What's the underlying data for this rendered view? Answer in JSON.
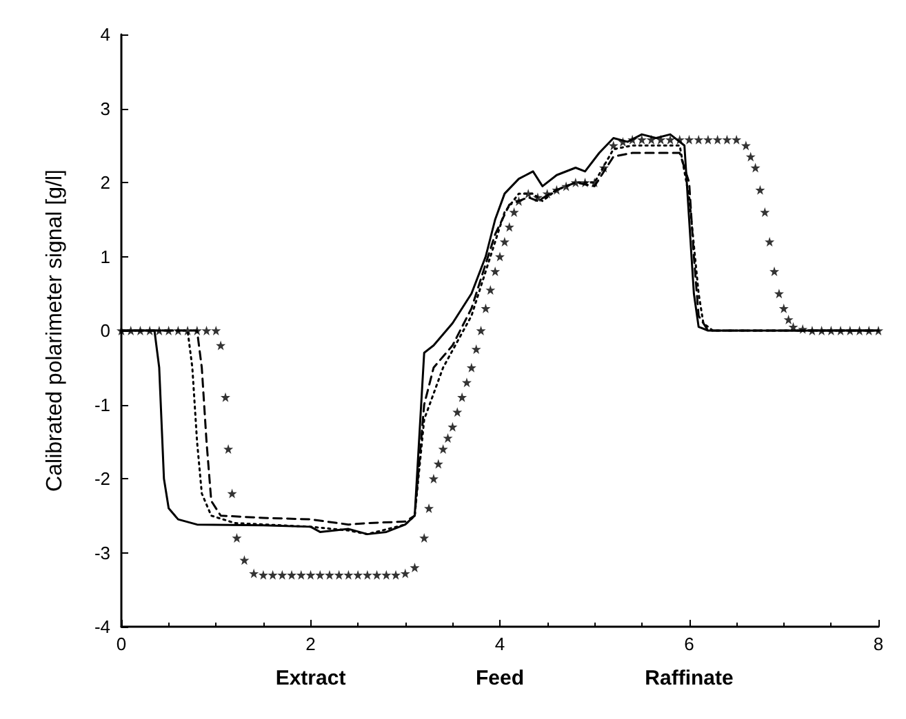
{
  "chart_data": {
    "type": "line",
    "ylabel": "Calibrated polarimeter signal [g/l]",
    "xlim": [
      0,
      8
    ],
    "xticks": [
      0,
      2,
      4,
      6,
      8
    ],
    "ylim": [
      -4,
      4
    ],
    "yticks": [
      -4,
      -3,
      -2,
      -1,
      0,
      1,
      2,
      3,
      4
    ],
    "grid": false,
    "annotations": [
      "Extract",
      "Feed",
      "Raffinate"
    ],
    "series": [
      {
        "color": "#000000",
        "line_style": "solid",
        "marker": "none",
        "x": [
          0,
          0.35,
          0.4,
          0.45,
          0.5,
          0.6,
          0.8,
          1.5,
          2,
          2.1,
          2.4,
          2.6,
          2.8,
          3.0,
          3.1,
          3.2,
          3.3,
          3.5,
          3.7,
          3.85,
          3.95,
          4.05,
          4.2,
          4.35,
          4.45,
          4.6,
          4.8,
          4.9,
          5.05,
          5.2,
          5.35,
          5.5,
          5.65,
          5.8,
          5.95,
          6.0,
          6.05,
          6.1,
          6.2,
          8
        ],
        "values": [
          0,
          0,
          -0.5,
          -2.0,
          -2.4,
          -2.55,
          -2.62,
          -2.63,
          -2.65,
          -2.72,
          -2.68,
          -2.75,
          -2.72,
          -2.62,
          -2.5,
          -0.3,
          -0.2,
          0.1,
          0.5,
          1.0,
          1.5,
          1.85,
          2.05,
          2.15,
          1.95,
          2.1,
          2.2,
          2.15,
          2.4,
          2.6,
          2.55,
          2.65,
          2.6,
          2.65,
          2.5,
          1.5,
          0.5,
          0.05,
          0,
          0
        ]
      },
      {
        "color": "#000000",
        "line_style": "dashed",
        "marker": "none",
        "x": [
          0,
          0.8,
          0.85,
          0.9,
          0.95,
          1.05,
          1.5,
          2,
          2.4,
          2.6,
          3.0,
          3.1,
          3.2,
          3.3,
          3.5,
          3.7,
          3.85,
          3.95,
          4.1,
          4.3,
          4.4,
          4.6,
          4.8,
          5.0,
          5.2,
          5.4,
          5.6,
          5.9,
          6.0,
          6.05,
          6.1,
          6.2,
          8
        ],
        "values": [
          0,
          0,
          -0.5,
          -1.5,
          -2.3,
          -2.5,
          -2.53,
          -2.55,
          -2.62,
          -2.6,
          -2.58,
          -2.5,
          -1.0,
          -0.5,
          -0.2,
          0.3,
          0.9,
          1.3,
          1.7,
          1.8,
          1.75,
          1.9,
          2.0,
          1.95,
          2.35,
          2.4,
          2.4,
          2.4,
          2.0,
          1.0,
          0.2,
          0,
          0
        ]
      },
      {
        "color": "#000000",
        "line_style": "dotted",
        "marker": "none",
        "x": [
          0,
          0.7,
          0.75,
          0.8,
          0.85,
          0.95,
          1.2,
          2,
          2.4,
          2.6,
          3,
          3.1,
          3.2,
          3.4,
          3.7,
          3.9,
          4.05,
          4.2,
          4.35,
          4.45,
          4.6,
          4.8,
          5.0,
          5.2,
          5.4,
          5.6,
          5.9,
          6.0,
          6.1,
          6.15,
          6.25,
          8
        ],
        "values": [
          0,
          0,
          -0.5,
          -1.5,
          -2.2,
          -2.5,
          -2.6,
          -2.65,
          -2.7,
          -2.75,
          -2.62,
          -2.5,
          -1.2,
          -0.5,
          0.2,
          1.0,
          1.6,
          1.85,
          1.85,
          1.75,
          1.9,
          2.0,
          2.0,
          2.45,
          2.5,
          2.5,
          2.5,
          1.8,
          0.5,
          0.1,
          0,
          0
        ]
      },
      {
        "type": "scatter",
        "color": "#000000",
        "marker": "star",
        "x": [
          0,
          0.1,
          0.2,
          0.3,
          0.4,
          0.5,
          0.6,
          0.7,
          0.8,
          0.9,
          1.0,
          1.05,
          1.1,
          1.13,
          1.17,
          1.22,
          1.3,
          1.4,
          1.5,
          1.6,
          1.7,
          1.8,
          1.9,
          2,
          2.1,
          2.2,
          2.3,
          2.4,
          2.5,
          2.6,
          2.7,
          2.8,
          2.9,
          3.0,
          3.1,
          3.2,
          3.25,
          3.3,
          3.35,
          3.4,
          3.45,
          3.5,
          3.55,
          3.6,
          3.65,
          3.7,
          3.75,
          3.8,
          3.85,
          3.9,
          3.95,
          4.0,
          4.05,
          4.1,
          4.15,
          4.2,
          4.3,
          4.4,
          4.5,
          4.6,
          4.7,
          4.8,
          4.9,
          5.0,
          5.1,
          5.2,
          5.3,
          5.4,
          5.5,
          5.6,
          5.7,
          5.8,
          5.9,
          6.0,
          6.1,
          6.2,
          6.3,
          6.4,
          6.5,
          6.6,
          6.65,
          6.7,
          6.75,
          6.8,
          6.85,
          6.9,
          6.95,
          7.0,
          7.05,
          7.1,
          7.2,
          7.3,
          7.4,
          7.5,
          7.6,
          7.7,
          7.8,
          7.9,
          8
        ],
        "values": [
          0,
          0,
          0,
          0,
          0,
          0,
          0,
          0,
          0,
          0,
          0,
          -0.2,
          -0.9,
          -1.6,
          -2.2,
          -2.8,
          -3.1,
          -3.28,
          -3.3,
          -3.3,
          -3.3,
          -3.3,
          -3.3,
          -3.3,
          -3.3,
          -3.3,
          -3.3,
          -3.3,
          -3.3,
          -3.3,
          -3.3,
          -3.3,
          -3.3,
          -3.28,
          -3.2,
          -2.8,
          -2.4,
          -2.0,
          -1.8,
          -1.6,
          -1.45,
          -1.3,
          -1.1,
          -0.9,
          -0.7,
          -0.5,
          -0.25,
          0,
          0.3,
          0.55,
          0.8,
          1.0,
          1.2,
          1.4,
          1.6,
          1.75,
          1.85,
          1.8,
          1.85,
          1.9,
          1.95,
          2.0,
          2.0,
          2.0,
          2.2,
          2.5,
          2.55,
          2.58,
          2.58,
          2.58,
          2.58,
          2.58,
          2.58,
          2.58,
          2.58,
          2.58,
          2.58,
          2.58,
          2.58,
          2.5,
          2.35,
          2.2,
          1.9,
          1.6,
          1.2,
          0.8,
          0.5,
          0.3,
          0.15,
          0.05,
          0.02,
          0,
          0,
          0,
          0,
          0,
          0,
          0,
          0
        ]
      }
    ]
  }
}
